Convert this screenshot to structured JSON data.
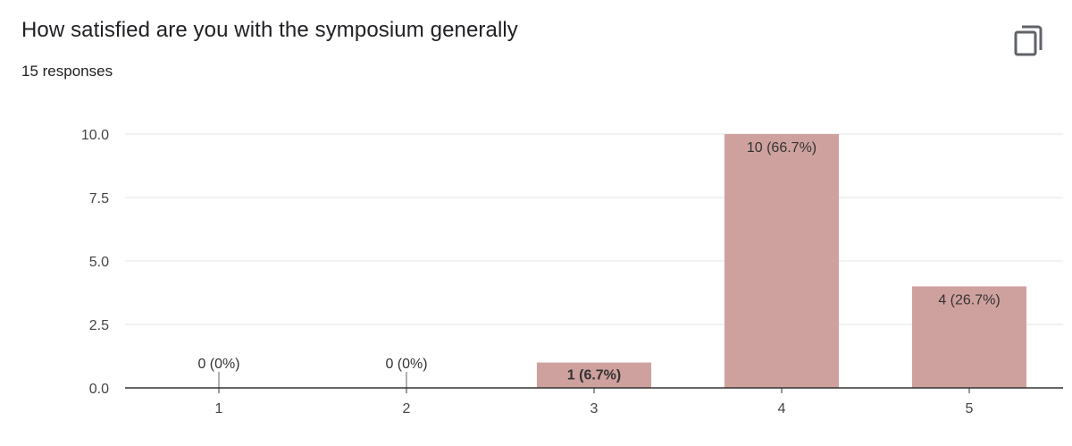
{
  "header": {
    "title": "How satisfied are you with the symposium generally",
    "subtitle": "15 responses",
    "copy_icon": "copy-icon"
  },
  "colors": {
    "bar": "#cfa19e",
    "grid": "#e6e6e6",
    "axis": "#333333",
    "stub": "#999999"
  },
  "chart_data": {
    "type": "bar",
    "title": "",
    "xlabel": "",
    "ylabel": "",
    "categories": [
      "1",
      "2",
      "3",
      "4",
      "5"
    ],
    "values": [
      0,
      0,
      1,
      10,
      4
    ],
    "data_labels": [
      "0 (0%)",
      "0 (0%)",
      "1 (6.7%)",
      "10 (66.7%)",
      "4 (26.7%)"
    ],
    "ylim": [
      0,
      10
    ],
    "yticks": [
      "0.0",
      "2.5",
      "5.0",
      "7.5",
      "10.0"
    ],
    "ytick_values": [
      0,
      2.5,
      5,
      7.5,
      10
    ],
    "grid": true,
    "legend": "none"
  }
}
